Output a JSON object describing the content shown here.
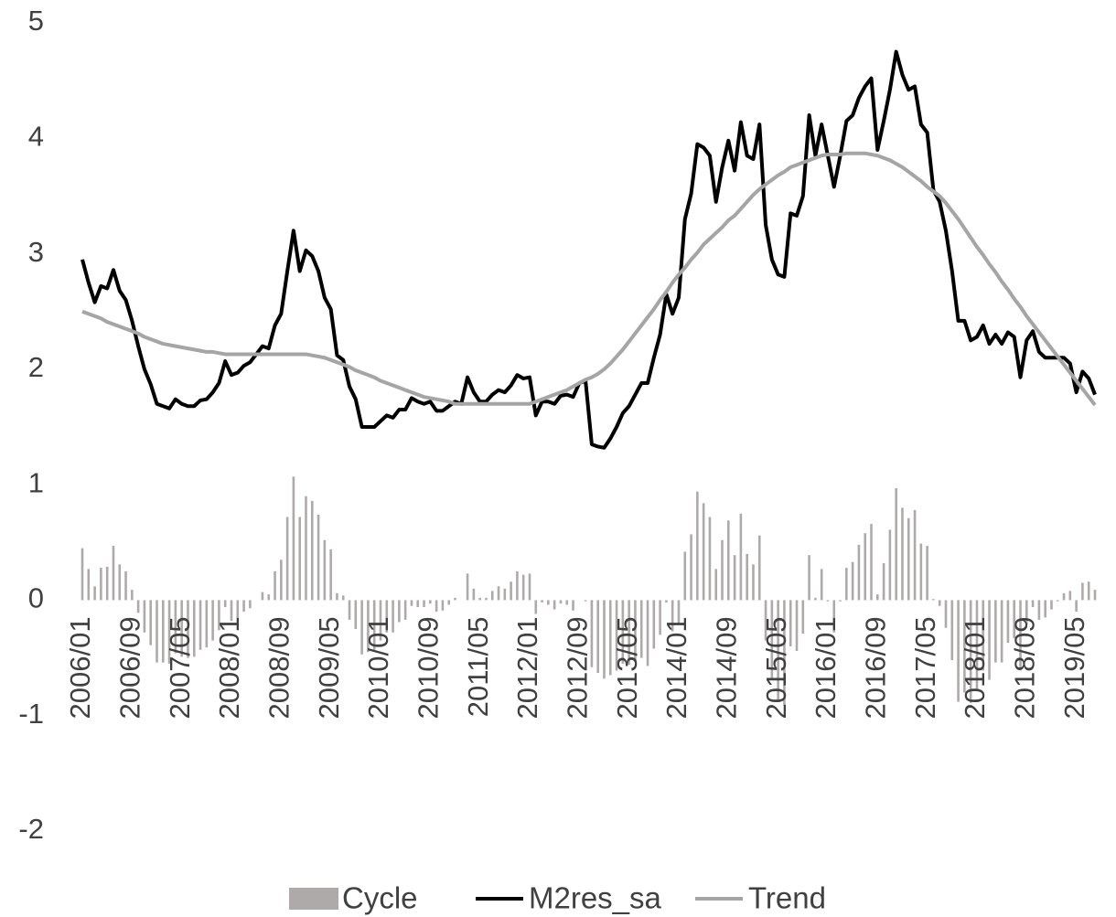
{
  "chart_data": {
    "type": "combo",
    "categories": [
      "2006/01",
      null,
      null,
      null,
      null,
      null,
      null,
      null,
      "2006/09",
      null,
      null,
      null,
      null,
      null,
      null,
      null,
      "2007/05",
      null,
      null,
      null,
      null,
      null,
      null,
      null,
      "2008/01",
      null,
      null,
      null,
      null,
      null,
      null,
      null,
      "2008/09",
      null,
      null,
      null,
      null,
      null,
      null,
      null,
      "2009/05",
      null,
      null,
      null,
      null,
      null,
      null,
      null,
      "2010/01",
      null,
      null,
      null,
      null,
      null,
      null,
      null,
      "2010/09",
      null,
      null,
      null,
      null,
      null,
      null,
      null,
      "2011/05",
      null,
      null,
      null,
      null,
      null,
      null,
      null,
      "2012/01",
      null,
      null,
      null,
      null,
      null,
      null,
      null,
      "2012/09",
      null,
      null,
      null,
      null,
      null,
      null,
      null,
      "2013/05",
      null,
      null,
      null,
      null,
      null,
      null,
      null,
      "2014/01",
      null,
      null,
      null,
      null,
      null,
      null,
      null,
      "2014/09",
      null,
      null,
      null,
      null,
      null,
      null,
      null,
      "2015/05",
      null,
      null,
      null,
      null,
      null,
      null,
      null,
      "2016/01",
      null,
      null,
      null,
      null,
      null,
      null,
      null,
      "2016/09",
      null,
      null,
      null,
      null,
      null,
      null,
      null,
      "2017/05",
      null,
      null,
      null,
      null,
      null,
      null,
      null,
      "2018/01",
      null,
      null,
      null,
      null,
      null,
      null,
      null,
      "2018/09",
      null,
      null,
      null,
      null,
      null,
      null,
      null,
      "2019/05",
      null,
      null,
      null
    ],
    "series": [
      {
        "name": "Cycle",
        "type": "bar",
        "color": "#aeaaaa",
        "values": [
          0.45,
          0.27,
          0.12,
          0.28,
          0.29,
          0.47,
          0.31,
          0.25,
          0.09,
          -0.11,
          -0.28,
          -0.39,
          -0.54,
          -0.54,
          -0.55,
          -0.46,
          -0.49,
          -0.5,
          -0.49,
          -0.43,
          -0.41,
          -0.35,
          -0.26,
          -0.06,
          -0.18,
          -0.16,
          -0.1,
          -0.07,
          0.0,
          0.07,
          0.05,
          0.25,
          0.35,
          0.72,
          1.07,
          0.72,
          0.9,
          0.86,
          0.74,
          0.52,
          0.44,
          0.06,
          0.04,
          -0.17,
          -0.25,
          -0.47,
          -0.45,
          -0.43,
          -0.35,
          -0.28,
          -0.28,
          -0.19,
          -0.17,
          -0.05,
          -0.06,
          -0.06,
          -0.03,
          -0.1,
          -0.09,
          -0.04,
          0.02,
          0.0,
          0.23,
          0.1,
          0.02,
          0.02,
          0.08,
          0.12,
          0.1,
          0.16,
          0.25,
          0.22,
          0.23,
          -0.12,
          -0.02,
          -0.04,
          -0.08,
          -0.03,
          -0.04,
          -0.09,
          0.0,
          -0.01,
          -0.58,
          -0.63,
          -0.68,
          -0.65,
          -0.61,
          -0.55,
          -0.56,
          -0.53,
          -0.5,
          -0.57,
          -0.42,
          -0.3,
          -0.02,
          -0.27,
          -0.2,
          0.42,
          0.57,
          0.94,
          0.84,
          0.72,
          0.27,
          0.52,
          0.69,
          0.39,
          0.75,
          0.4,
          0.31,
          0.56,
          -0.35,
          -0.69,
          -0.86,
          -0.91,
          -0.4,
          -0.44,
          -0.29,
          0.39,
          0.02,
          0.27,
          -0.01,
          -0.28,
          -0.01,
          0.28,
          0.33,
          0.48,
          0.58,
          0.66,
          0.05,
          0.32,
          0.61,
          0.97,
          0.8,
          0.71,
          0.78,
          0.49,
          0.47,
          0.01,
          -0.05,
          -0.24,
          -0.52,
          -0.88,
          -0.8,
          -0.89,
          -0.78,
          -0.61,
          -0.69,
          -0.54,
          -0.54,
          -0.37,
          -0.33,
          -0.61,
          -0.21,
          -0.06,
          -0.17,
          -0.15,
          -0.08,
          -0.01,
          0.06,
          0.08,
          -0.1,
          0.15,
          0.16,
          0.09
        ]
      },
      {
        "name": "M2res_sa",
        "type": "line",
        "color": "#000000",
        "values": [
          2.95,
          2.75,
          2.58,
          2.72,
          2.7,
          2.86,
          2.68,
          2.6,
          2.42,
          2.2,
          2.0,
          1.87,
          1.7,
          1.68,
          1.66,
          1.74,
          1.7,
          1.68,
          1.68,
          1.73,
          1.74,
          1.8,
          1.88,
          2.07,
          1.95,
          1.97,
          2.03,
          2.06,
          2.13,
          2.2,
          2.18,
          2.38,
          2.48,
          2.85,
          3.2,
          2.85,
          3.03,
          2.98,
          2.85,
          2.62,
          2.52,
          2.12,
          2.08,
          1.85,
          1.74,
          1.5,
          1.5,
          1.5,
          1.55,
          1.6,
          1.58,
          1.65,
          1.65,
          1.75,
          1.72,
          1.7,
          1.72,
          1.64,
          1.64,
          1.68,
          1.72,
          1.7,
          1.93,
          1.8,
          1.72,
          1.72,
          1.78,
          1.82,
          1.8,
          1.86,
          1.95,
          1.92,
          1.93,
          1.6,
          1.72,
          1.72,
          1.7,
          1.77,
          1.78,
          1.76,
          1.88,
          1.9,
          1.35,
          1.33,
          1.32,
          1.4,
          1.5,
          1.62,
          1.68,
          1.78,
          1.88,
          1.88,
          2.1,
          2.3,
          2.65,
          2.48,
          2.62,
          3.3,
          3.52,
          3.95,
          3.92,
          3.85,
          3.45,
          3.75,
          3.98,
          3.72,
          4.14,
          3.85,
          3.82,
          4.12,
          3.25,
          2.95,
          2.82,
          2.8,
          3.35,
          3.33,
          3.5,
          4.2,
          3.85,
          4.12,
          3.85,
          3.58,
          3.85,
          4.15,
          4.2,
          4.35,
          4.45,
          4.52,
          3.9,
          4.15,
          4.42,
          4.75,
          4.55,
          4.42,
          4.45,
          4.12,
          4.05,
          3.55,
          3.45,
          3.2,
          2.85,
          2.42,
          2.42,
          2.25,
          2.28,
          2.38,
          2.22,
          2.3,
          2.22,
          2.32,
          2.28,
          1.93,
          2.25,
          2.33,
          2.15,
          2.1,
          2.1,
          2.1,
          2.1,
          2.05,
          1.8,
          1.98,
          1.92,
          1.78
        ]
      },
      {
        "name": "Trend",
        "type": "line",
        "color": "#a5a5a5",
        "values": [
          2.5,
          2.48,
          2.46,
          2.44,
          2.41,
          2.39,
          2.37,
          2.35,
          2.33,
          2.31,
          2.28,
          2.26,
          2.24,
          2.22,
          2.21,
          2.2,
          2.19,
          2.18,
          2.17,
          2.16,
          2.15,
          2.15,
          2.14,
          2.13,
          2.13,
          2.13,
          2.13,
          2.13,
          2.13,
          2.13,
          2.13,
          2.13,
          2.13,
          2.13,
          2.13,
          2.13,
          2.13,
          2.12,
          2.11,
          2.1,
          2.08,
          2.06,
          2.04,
          2.02,
          1.99,
          1.97,
          1.95,
          1.93,
          1.9,
          1.88,
          1.86,
          1.84,
          1.82,
          1.8,
          1.78,
          1.76,
          1.75,
          1.74,
          1.73,
          1.72,
          1.7,
          1.7,
          1.7,
          1.7,
          1.7,
          1.7,
          1.7,
          1.7,
          1.7,
          1.7,
          1.7,
          1.7,
          1.7,
          1.72,
          1.74,
          1.76,
          1.78,
          1.8,
          1.82,
          1.85,
          1.88,
          1.91,
          1.93,
          1.96,
          2.0,
          2.05,
          2.11,
          2.17,
          2.24,
          2.31,
          2.38,
          2.45,
          2.52,
          2.6,
          2.67,
          2.75,
          2.82,
          2.88,
          2.95,
          3.01,
          3.08,
          3.13,
          3.18,
          3.23,
          3.29,
          3.33,
          3.39,
          3.45,
          3.51,
          3.56,
          3.6,
          3.64,
          3.68,
          3.71,
          3.75,
          3.77,
          3.79,
          3.81,
          3.83,
          3.85,
          3.86,
          3.86,
          3.86,
          3.87,
          3.87,
          3.87,
          3.87,
          3.86,
          3.85,
          3.83,
          3.81,
          3.78,
          3.75,
          3.71,
          3.67,
          3.63,
          3.58,
          3.54,
          3.5,
          3.44,
          3.37,
          3.3,
          3.22,
          3.14,
          3.06,
          2.99,
          2.91,
          2.84,
          2.76,
          2.69,
          2.61,
          2.54,
          2.46,
          2.39,
          2.32,
          2.25,
          2.18,
          2.11,
          2.04,
          1.97,
          1.9,
          1.83,
          1.76,
          1.69
        ]
      }
    ],
    "ylim": [
      -2,
      5
    ],
    "yticks": [
      -2,
      -1,
      0,
      1,
      2,
      3,
      4,
      5
    ]
  }
}
